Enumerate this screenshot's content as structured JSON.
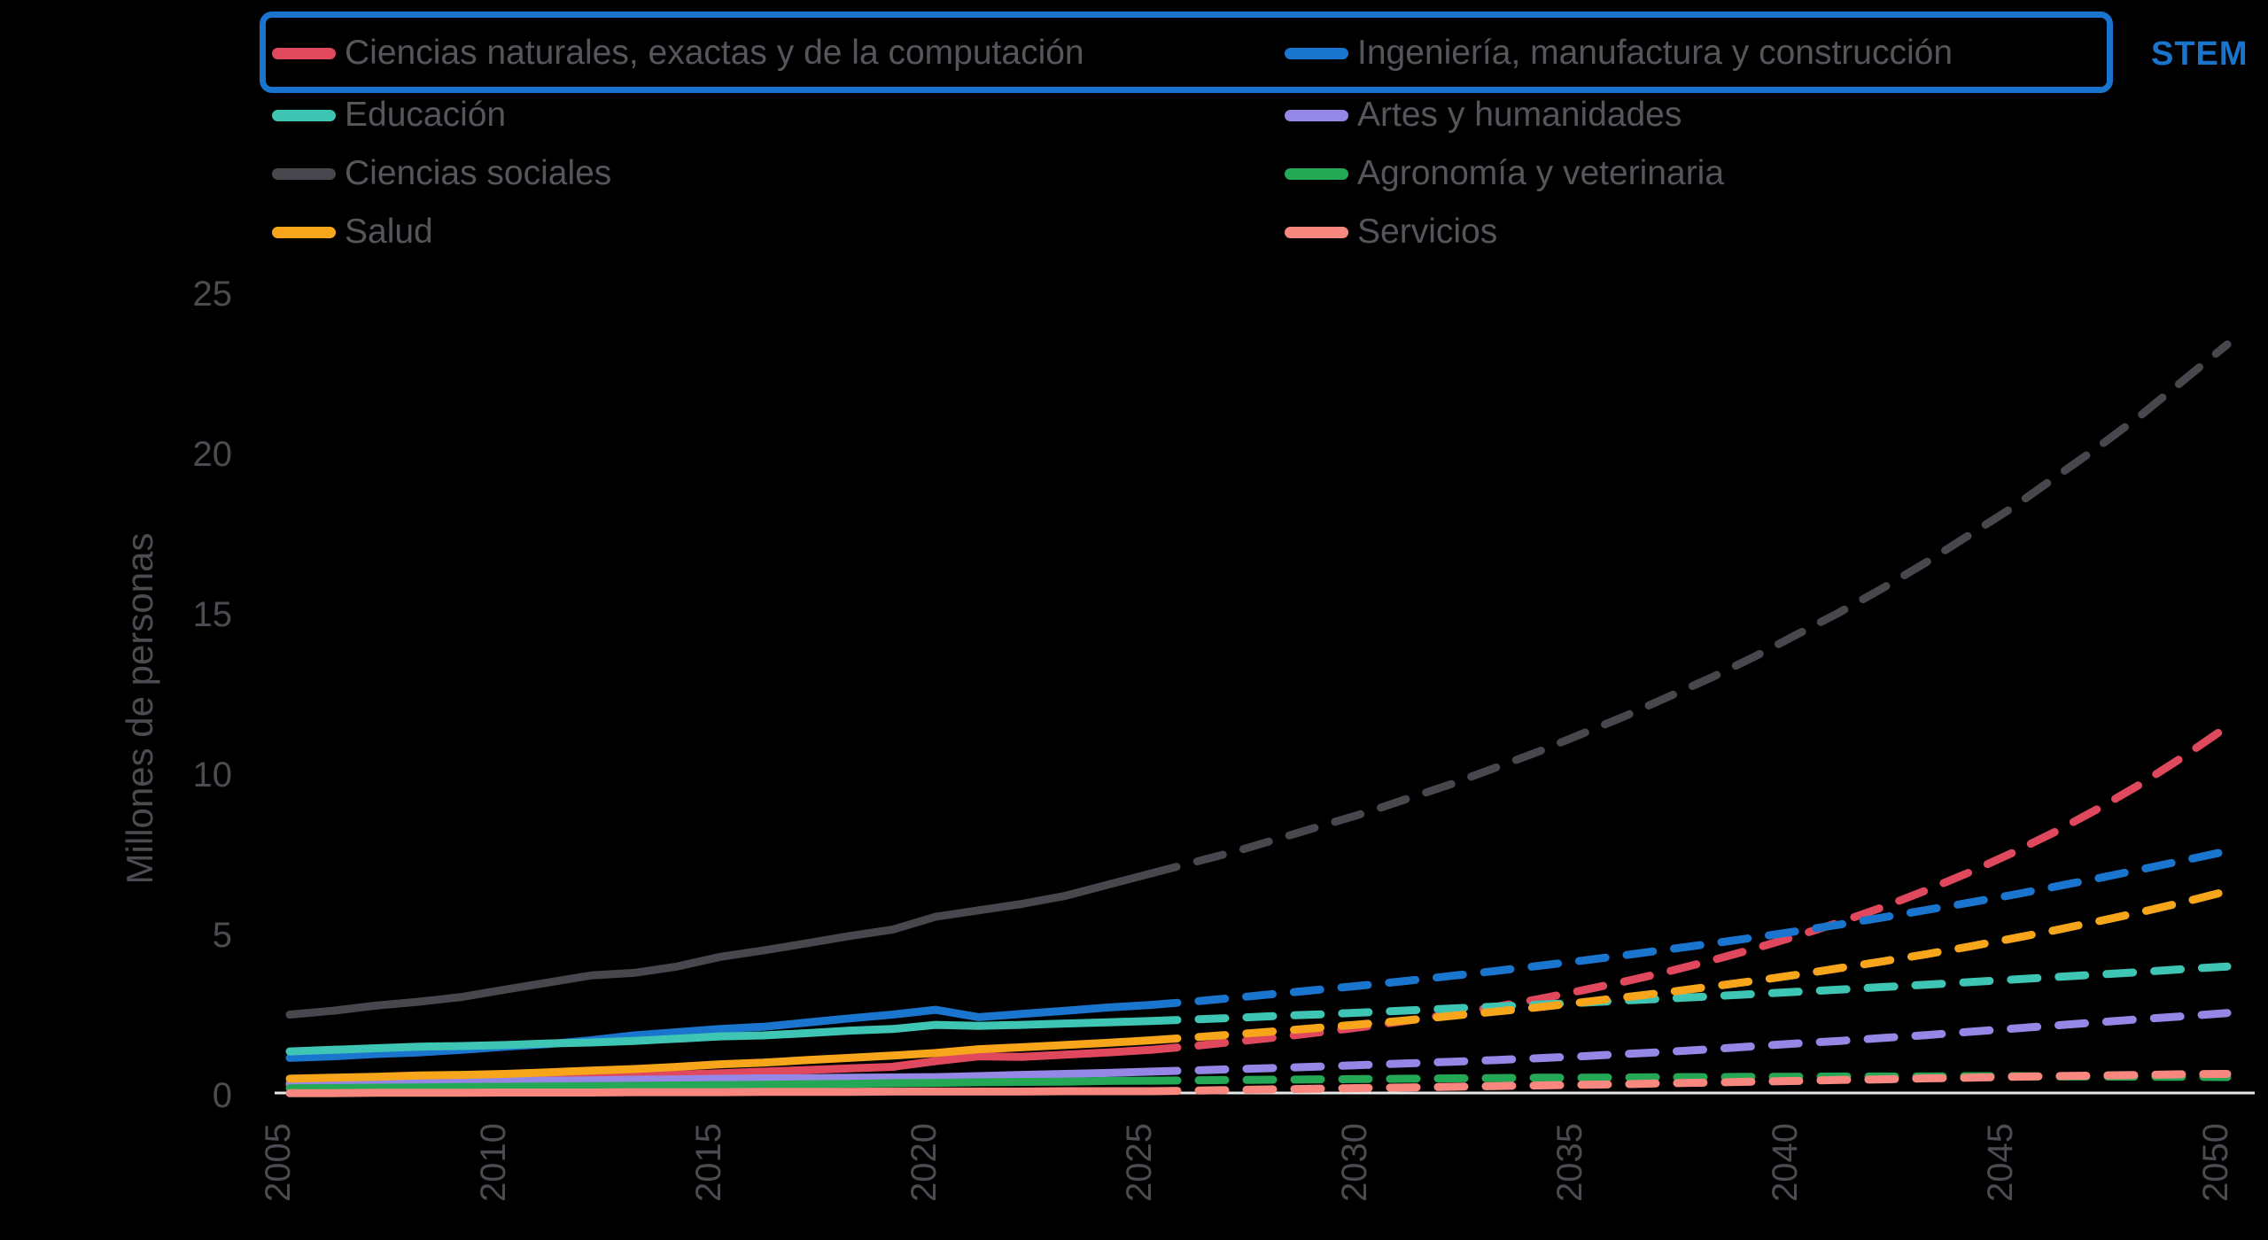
{
  "legend": {
    "stem_label": "STEM",
    "stem_color": "#1874cd",
    "highlight_box_color": "#1874cd",
    "items": [
      {
        "label": "Ciencias naturales, exactas y de la computación",
        "color": "#e0485e",
        "highlighted": true
      },
      {
        "label": "Ingeniería, manufactura y construcción",
        "color": "#1a75cf",
        "highlighted": true
      },
      {
        "label": "Educación",
        "color": "#3fc5b4",
        "highlighted": false
      },
      {
        "label": "Artes y humanidades",
        "color": "#9487e6",
        "highlighted": false
      },
      {
        "label": "Ciencias sociales",
        "color": "#47474d",
        "highlighted": false
      },
      {
        "label": "Agronomía y veterinaria",
        "color": "#25a855",
        "highlighted": false
      },
      {
        "label": "Salud",
        "color": "#f7a61b",
        "highlighted": false
      },
      {
        "label": "Servicios",
        "color": "#f8887f",
        "highlighted": false
      }
    ]
  },
  "chart_data": {
    "type": "line",
    "title": "",
    "xlabel": "",
    "ylabel": "Millones de personas",
    "xlim": [
      2005,
      2050
    ],
    "ylim": [
      0,
      25
    ],
    "x_ticks": [
      2005,
      2010,
      2015,
      2020,
      2025,
      2030,
      2035,
      2040,
      2045,
      2050
    ],
    "y_ticks": [
      0,
      5,
      10,
      15,
      20,
      25
    ],
    "grid": false,
    "legend_position": "top",
    "projection_style": "dashed",
    "history_years": [
      2005,
      2006,
      2007,
      2008,
      2009,
      2010,
      2011,
      2012,
      2013,
      2014,
      2015,
      2016,
      2017,
      2018,
      2019,
      2020,
      2021,
      2022,
      2023,
      2024,
      2025
    ],
    "projection_years": [
      2025,
      2026,
      2027,
      2028,
      2029,
      2030,
      2031,
      2032,
      2033,
      2034,
      2035,
      2036,
      2037,
      2038,
      2039,
      2040,
      2041,
      2042,
      2043,
      2044,
      2045,
      2046,
      2047,
      2048,
      2049,
      2050
    ],
    "axis_color": "#e9e9e9",
    "text_color": "#4b4b51",
    "series": [
      {
        "name": "Ciencias naturales, exactas y de la computación",
        "color": "#e0485e",
        "history": [
          0.3,
          0.32,
          0.35,
          0.38,
          0.42,
          0.45,
          0.5,
          0.55,
          0.6,
          0.63,
          0.67,
          0.72,
          0.77,
          0.82,
          0.87,
          1.05,
          1.2,
          1.18,
          1.25,
          1.32,
          1.4
        ],
        "projection": [
          1.4,
          1.52,
          1.66,
          1.8,
          1.96,
          2.13,
          2.32,
          2.52,
          2.74,
          2.98,
          3.25,
          3.53,
          3.84,
          4.18,
          4.55,
          4.95,
          5.38,
          5.85,
          6.37,
          6.93,
          7.54,
          8.2,
          8.92,
          9.7,
          10.56,
          11.48
        ]
      },
      {
        "name": "Ingeniería, manufactura y construcción",
        "color": "#1a75cf",
        "history": [
          1.15,
          1.2,
          1.27,
          1.32,
          1.4,
          1.5,
          1.58,
          1.7,
          1.85,
          1.95,
          2.05,
          2.12,
          2.25,
          2.38,
          2.5,
          2.65,
          2.42,
          2.52,
          2.62,
          2.72,
          2.8
        ],
        "projection": [
          2.8,
          2.91,
          3.03,
          3.16,
          3.29,
          3.42,
          3.56,
          3.71,
          3.86,
          4.02,
          4.18,
          4.35,
          4.53,
          4.71,
          4.9,
          5.1,
          5.31,
          5.53,
          5.76,
          5.99,
          6.23,
          6.49,
          6.75,
          7.03,
          7.31,
          7.6
        ]
      },
      {
        "name": "Educación",
        "color": "#3fc5b4",
        "history": [
          1.35,
          1.4,
          1.45,
          1.5,
          1.52,
          1.55,
          1.6,
          1.63,
          1.68,
          1.75,
          1.82,
          1.85,
          1.92,
          2.0,
          2.05,
          2.18,
          2.15,
          2.18,
          2.22,
          2.26,
          2.3
        ],
        "projection": [
          2.3,
          2.35,
          2.4,
          2.46,
          2.51,
          2.57,
          2.63,
          2.69,
          2.75,
          2.81,
          2.87,
          2.94,
          3.0,
          3.07,
          3.14,
          3.21,
          3.28,
          3.36,
          3.43,
          3.51,
          3.59,
          3.67,
          3.75,
          3.83,
          3.92,
          4.0
        ]
      },
      {
        "name": "Artes y humanidades",
        "color": "#9487e6",
        "history": [
          0.36,
          0.37,
          0.38,
          0.4,
          0.41,
          0.42,
          0.44,
          0.45,
          0.47,
          0.48,
          0.5,
          0.51,
          0.52,
          0.53,
          0.54,
          0.55,
          0.58,
          0.62,
          0.65,
          0.68,
          0.72
        ],
        "projection": [
          0.72,
          0.76,
          0.8,
          0.84,
          0.88,
          0.93,
          0.98,
          1.03,
          1.08,
          1.14,
          1.2,
          1.27,
          1.34,
          1.42,
          1.51,
          1.6,
          1.68,
          1.77,
          1.86,
          1.96,
          2.06,
          2.16,
          2.26,
          2.36,
          2.45,
          2.55
        ]
      },
      {
        "name": "Ciencias sociales",
        "color": "#47474d",
        "history": [
          2.5,
          2.62,
          2.78,
          2.9,
          3.05,
          3.28,
          3.5,
          3.72,
          3.8,
          4.0,
          4.3,
          4.5,
          4.72,
          4.95,
          5.15,
          5.55,
          5.75,
          5.95,
          6.2,
          6.55,
          6.9
        ],
        "projection": [
          6.9,
          7.25,
          7.6,
          8.0,
          8.4,
          8.8,
          9.25,
          9.7,
          10.2,
          10.7,
          11.25,
          11.8,
          12.4,
          13.0,
          13.65,
          14.35,
          15.05,
          15.8,
          16.6,
          17.45,
          18.3,
          19.25,
          20.2,
          21.2,
          22.3,
          23.4
        ]
      },
      {
        "name": "Agronomía y veterinaria",
        "color": "#25a855",
        "history": [
          0.2,
          0.21,
          0.22,
          0.23,
          0.24,
          0.25,
          0.26,
          0.27,
          0.28,
          0.29,
          0.3,
          0.31,
          0.33,
          0.34,
          0.36,
          0.37,
          0.39,
          0.4,
          0.41,
          0.43,
          0.44
        ],
        "projection": [
          0.44,
          0.45,
          0.46,
          0.47,
          0.48,
          0.49,
          0.5,
          0.51,
          0.52,
          0.53,
          0.53,
          0.54,
          0.55,
          0.55,
          0.56,
          0.56,
          0.57,
          0.57,
          0.57,
          0.58,
          0.58,
          0.57,
          0.57,
          0.56,
          0.56,
          0.55
        ]
      },
      {
        "name": "Salud",
        "color": "#f7a61b",
        "history": [
          0.5,
          0.53,
          0.56,
          0.6,
          0.62,
          0.65,
          0.7,
          0.75,
          0.8,
          0.87,
          0.95,
          1.0,
          1.08,
          1.15,
          1.22,
          1.3,
          1.42,
          1.48,
          1.55,
          1.62,
          1.7
        ],
        "projection": [
          1.7,
          1.79,
          1.89,
          1.99,
          2.1,
          2.21,
          2.33,
          2.46,
          2.59,
          2.73,
          2.88,
          3.04,
          3.2,
          3.37,
          3.55,
          3.74,
          3.95,
          4.16,
          4.38,
          4.62,
          4.87,
          5.13,
          5.41,
          5.7,
          6.01,
          6.35
        ]
      },
      {
        "name": "Servicios",
        "color": "#f8887f",
        "history": [
          0.05,
          0.05,
          0.06,
          0.06,
          0.06,
          0.07,
          0.07,
          0.07,
          0.08,
          0.08,
          0.08,
          0.09,
          0.09,
          0.09,
          0.1,
          0.1,
          0.1,
          0.1,
          0.11,
          0.11,
          0.11
        ],
        "projection": [
          0.11,
          0.13,
          0.15,
          0.17,
          0.19,
          0.21,
          0.23,
          0.25,
          0.27,
          0.29,
          0.31,
          0.33,
          0.36,
          0.38,
          0.41,
          0.43,
          0.46,
          0.48,
          0.51,
          0.53,
          0.56,
          0.58,
          0.6,
          0.62,
          0.64,
          0.65
        ]
      }
    ]
  }
}
